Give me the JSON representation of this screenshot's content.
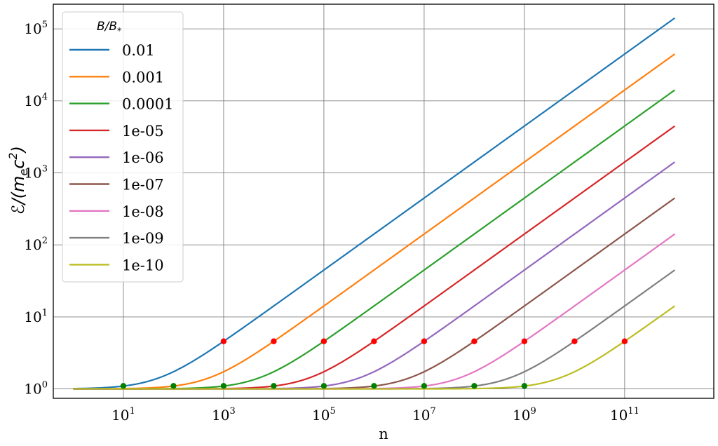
{
  "chart_data": {
    "type": "line",
    "xlabel": "n",
    "ylabel": "ℰ/(m_e c^2)",
    "xscale": "log",
    "yscale": "log",
    "xlim": [
      0.4,
      6000000000000.0
    ],
    "ylim": [
      0.74,
      220000.0
    ],
    "grid": true,
    "x_ticks": [
      {
        "base": "10",
        "exp": "1",
        "value": 10
      },
      {
        "base": "10",
        "exp": "3",
        "value": 1000
      },
      {
        "base": "10",
        "exp": "5",
        "value": 100000
      },
      {
        "base": "10",
        "exp": "7",
        "value": 10000000
      },
      {
        "base": "10",
        "exp": "9",
        "value": 1000000000
      },
      {
        "base": "10",
        "exp": "11",
        "value": 100000000000
      }
    ],
    "y_ticks": [
      {
        "base": "10",
        "exp": "0",
        "value": 1
      },
      {
        "base": "10",
        "exp": "1",
        "value": 10
      },
      {
        "base": "10",
        "exp": "2",
        "value": 100
      },
      {
        "base": "10",
        "exp": "3",
        "value": 1000
      },
      {
        "base": "10",
        "exp": "4",
        "value": 10000
      },
      {
        "base": "10",
        "exp": "5",
        "value": 100000
      }
    ],
    "x_range": [
      1,
      1000000000000.0
    ],
    "legend": {
      "title": "B/B*",
      "placement": "top-left"
    },
    "series": [
      {
        "name": "0.01",
        "b": 0.01,
        "color": "#1f77b4"
      },
      {
        "name": "0.001",
        "b": 0.001,
        "color": "#ff7f0e"
      },
      {
        "name": "0.0001",
        "b": 0.0001,
        "color": "#2ca02c"
      },
      {
        "name": "1e-05",
        "b": 1e-05,
        "color": "#d62728"
      },
      {
        "name": "1e-06",
        "b": 1e-06,
        "color": "#9467bd"
      },
      {
        "name": "1e-07",
        "b": 1e-07,
        "color": "#8c564b"
      },
      {
        "name": "1e-08",
        "b": 1e-08,
        "color": "#e377c2"
      },
      {
        "name": "1e-09",
        "b": 1e-09,
        "color": "#7f7f7f"
      },
      {
        "name": "1e-10",
        "b": 1e-10,
        "color": "#bcbd22"
      }
    ],
    "red_markers": [
      {
        "x": 1000.0,
        "y": 4.58
      },
      {
        "x": 10000.0,
        "y": 4.58
      },
      {
        "x": 100000.0,
        "y": 4.58
      },
      {
        "x": 1000000.0,
        "y": 4.58
      },
      {
        "x": 10000000.0,
        "y": 4.58
      },
      {
        "x": 100000000.0,
        "y": 4.58
      },
      {
        "x": 1000000000.0,
        "y": 4.58
      },
      {
        "x": 10000000000.0,
        "y": 4.58
      },
      {
        "x": 100000000000.0,
        "y": 4.58
      }
    ],
    "green_markers": [
      {
        "x": 10,
        "y": 1.1
      },
      {
        "x": 100.0,
        "y": 1.1
      },
      {
        "x": 1000.0,
        "y": 1.1
      },
      {
        "x": 10000.0,
        "y": 1.1
      },
      {
        "x": 100000.0,
        "y": 1.1
      },
      {
        "x": 1000000.0,
        "y": 1.1
      },
      {
        "x": 10000000.0,
        "y": 1.1
      },
      {
        "x": 100000000.0,
        "y": 1.1
      },
      {
        "x": 1000000000.0,
        "y": 1.1
      }
    ],
    "marker_colors": {
      "red": "#ff0000",
      "green": "#008000"
    }
  }
}
